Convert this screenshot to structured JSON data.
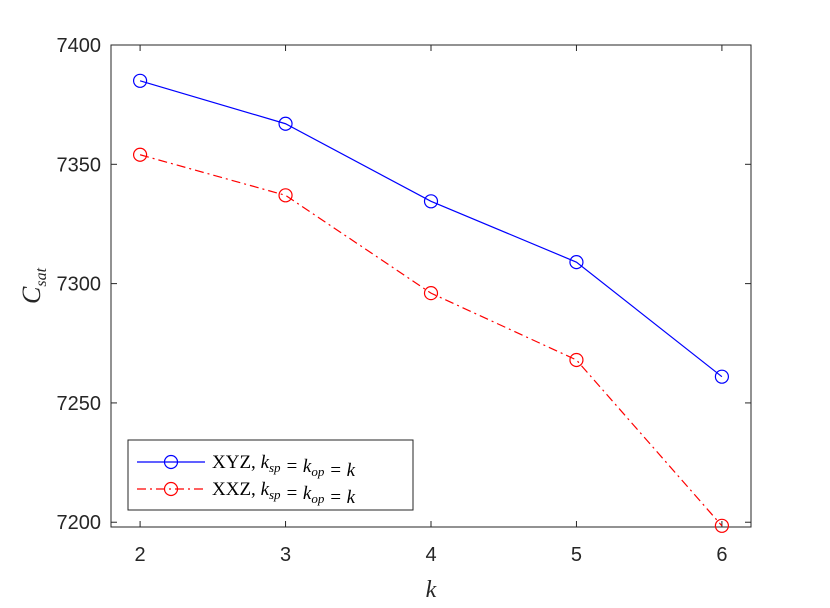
{
  "chart_data": {
    "type": "line",
    "xlabel": "k",
    "ylabel": "C_sat",
    "ylabel_main": "C",
    "ylabel_sub": "sat",
    "xlim": [
      1.8,
      6.2
    ],
    "ylim": [
      7198,
      7400
    ],
    "xticks": [
      2,
      3,
      4,
      5,
      6
    ],
    "yticks": [
      7200,
      7250,
      7300,
      7350,
      7400
    ],
    "x": [
      2,
      3,
      4,
      5,
      6
    ],
    "grid": false,
    "legend_position": "bottom-left",
    "series": [
      {
        "name": "XYZ, k_sp = k_op = k",
        "label_prefix": "XYZ, ",
        "values": [
          7385,
          7367,
          7334.5,
          7309,
          7261
        ],
        "color": "#0000ff",
        "line_style": "solid",
        "marker": "circle"
      },
      {
        "name": "XXZ, k_sp = k_op = k",
        "label_prefix": "XXZ, ",
        "values": [
          7354,
          7337,
          7296,
          7268,
          7198.5
        ],
        "color": "#ff0000",
        "line_style": "dash-dot",
        "marker": "circle"
      }
    ]
  }
}
